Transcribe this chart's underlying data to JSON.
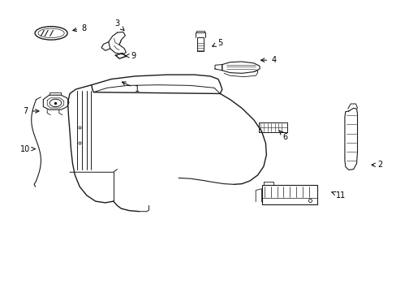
{
  "bg_color": "#ffffff",
  "line_color": "#1a1a1a",
  "figsize": [
    4.89,
    3.6
  ],
  "dpi": 100,
  "label_positions": {
    "1": [
      0.345,
      0.695,
      0.3,
      0.725
    ],
    "2": [
      0.96,
      0.435,
      0.93,
      0.435
    ],
    "3": [
      0.295,
      0.92,
      0.318,
      0.89
    ],
    "4": [
      0.69,
      0.795,
      0.65,
      0.795
    ],
    "5": [
      0.555,
      0.855,
      0.528,
      0.838
    ],
    "6": [
      0.72,
      0.53,
      0.7,
      0.56
    ],
    "7": [
      0.063,
      0.62,
      0.105,
      0.62
    ],
    "8": [
      0.21,
      0.905,
      0.175,
      0.895
    ],
    "9": [
      0.335,
      0.81,
      0.308,
      0.81
    ],
    "10": [
      0.063,
      0.49,
      0.095,
      0.49
    ],
    "11": [
      0.86,
      0.33,
      0.83,
      0.345
    ]
  }
}
